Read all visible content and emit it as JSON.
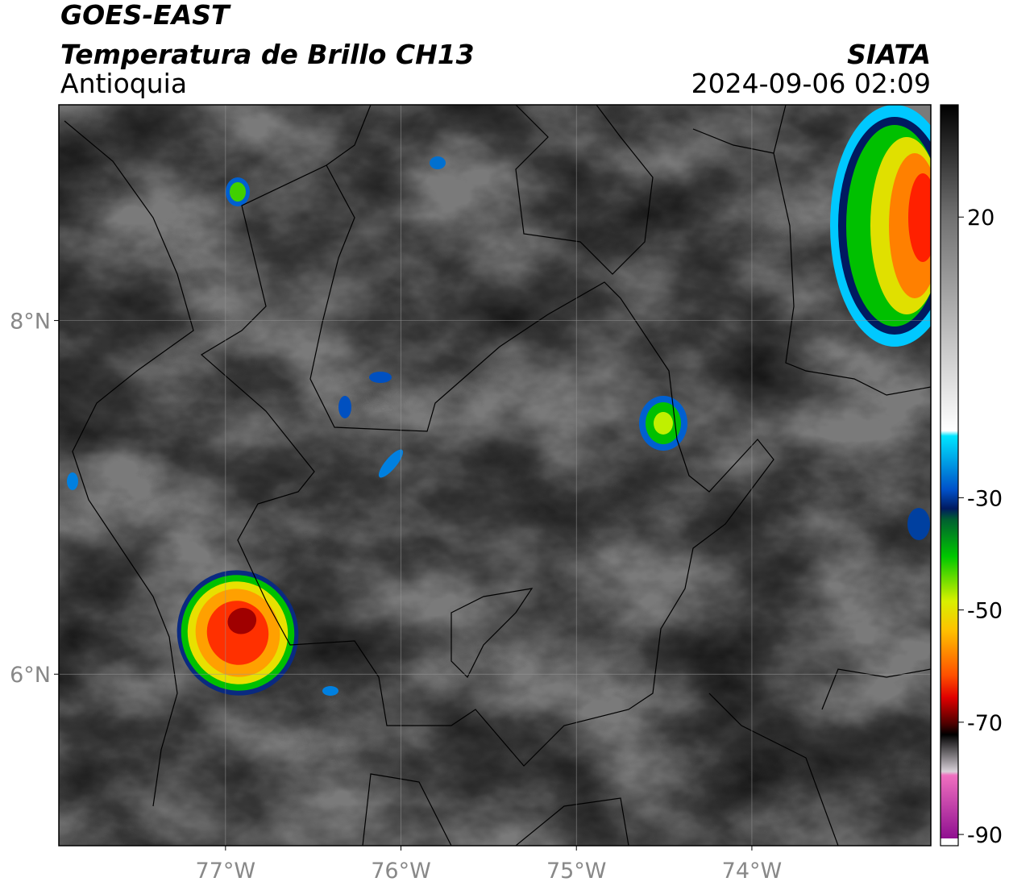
{
  "header": {
    "title": "GOES-EAST",
    "subtitle": "Temperatura de Brillo CH13",
    "region": "Antioquia",
    "source": "SIATA",
    "datetime": "2024-09-06 02:09"
  },
  "map": {
    "lonlim": [
      -77.95,
      -72.98
    ],
    "latlim": [
      5.03,
      9.22
    ],
    "lon_ticks": [
      {
        "value": -77,
        "label": "77°W"
      },
      {
        "value": -76,
        "label": "76°W"
      },
      {
        "value": -75,
        "label": "75°W"
      },
      {
        "value": -74,
        "label": "74°W"
      }
    ],
    "lat_ticks": [
      {
        "value": 8,
        "label": "8°N"
      },
      {
        "value": 6,
        "label": "6°N"
      }
    ],
    "grid": true
  },
  "colorbar": {
    "lim": [
      40,
      -92
    ],
    "ticks": [
      20,
      -30,
      -50,
      -70,
      -90
    ]
  }
}
